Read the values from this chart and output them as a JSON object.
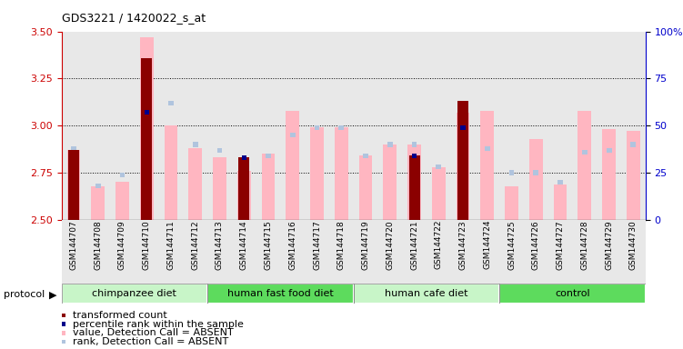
{
  "title": "GDS3221 / 1420022_s_at",
  "samples": [
    "GSM144707",
    "GSM144708",
    "GSM144709",
    "GSM144710",
    "GSM144711",
    "GSM144712",
    "GSM144713",
    "GSM144714",
    "GSM144715",
    "GSM144716",
    "GSM144717",
    "GSM144718",
    "GSM144719",
    "GSM144720",
    "GSM144721",
    "GSM144722",
    "GSM144723",
    "GSM144724",
    "GSM144725",
    "GSM144726",
    "GSM144727",
    "GSM144728",
    "GSM144729",
    "GSM144730"
  ],
  "transformed_count": [
    2.87,
    null,
    null,
    3.36,
    null,
    null,
    null,
    2.83,
    null,
    null,
    null,
    null,
    null,
    null,
    2.84,
    null,
    3.13,
    null,
    null,
    null,
    null,
    null,
    null,
    null
  ],
  "percentile_rank_val": [
    null,
    null,
    null,
    3.07,
    null,
    null,
    null,
    2.83,
    null,
    null,
    null,
    null,
    null,
    null,
    2.84,
    null,
    2.99,
    null,
    null,
    null,
    null,
    null,
    null,
    null
  ],
  "value_absent": [
    2.87,
    2.68,
    2.7,
    3.47,
    3.0,
    2.88,
    2.83,
    2.76,
    2.85,
    3.08,
    2.99,
    2.99,
    2.84,
    2.9,
    2.9,
    2.78,
    3.07,
    3.08,
    2.68,
    2.93,
    2.69,
    3.08,
    2.98,
    2.97
  ],
  "rank_absent_val": [
    2.88,
    2.68,
    2.74,
    3.1,
    3.12,
    2.9,
    2.87,
    2.75,
    2.84,
    2.95,
    2.99,
    2.99,
    2.84,
    2.9,
    2.9,
    2.78,
    2.99,
    2.88,
    2.75,
    2.75,
    2.7,
    2.86,
    2.87,
    2.9
  ],
  "groups": [
    {
      "label": "chimpanzee diet",
      "start": 0,
      "end": 5,
      "color": "#C8F5C8"
    },
    {
      "label": "human fast food diet",
      "start": 6,
      "end": 11,
      "color": "#5DDB5D"
    },
    {
      "label": "human cafe diet",
      "start": 12,
      "end": 17,
      "color": "#C8F5C8"
    },
    {
      "label": "control",
      "start": 18,
      "end": 23,
      "color": "#5DDB5D"
    }
  ],
  "ylim_left": [
    2.5,
    3.5
  ],
  "ylim_right": [
    0,
    100
  ],
  "yticks_left": [
    2.5,
    2.75,
    3.0,
    3.25,
    3.5
  ],
  "yticks_right": [
    0,
    25,
    50,
    75,
    100
  ],
  "color_red": "#8B0000",
  "color_blue": "#00008B",
  "color_pink": "#FFB6C1",
  "color_lightblue": "#B0C4DE",
  "color_left_axis": "#CC0000",
  "color_right_axis": "#0000CC",
  "bg_color": "#E8E8E8",
  "marker_size": 0.04
}
